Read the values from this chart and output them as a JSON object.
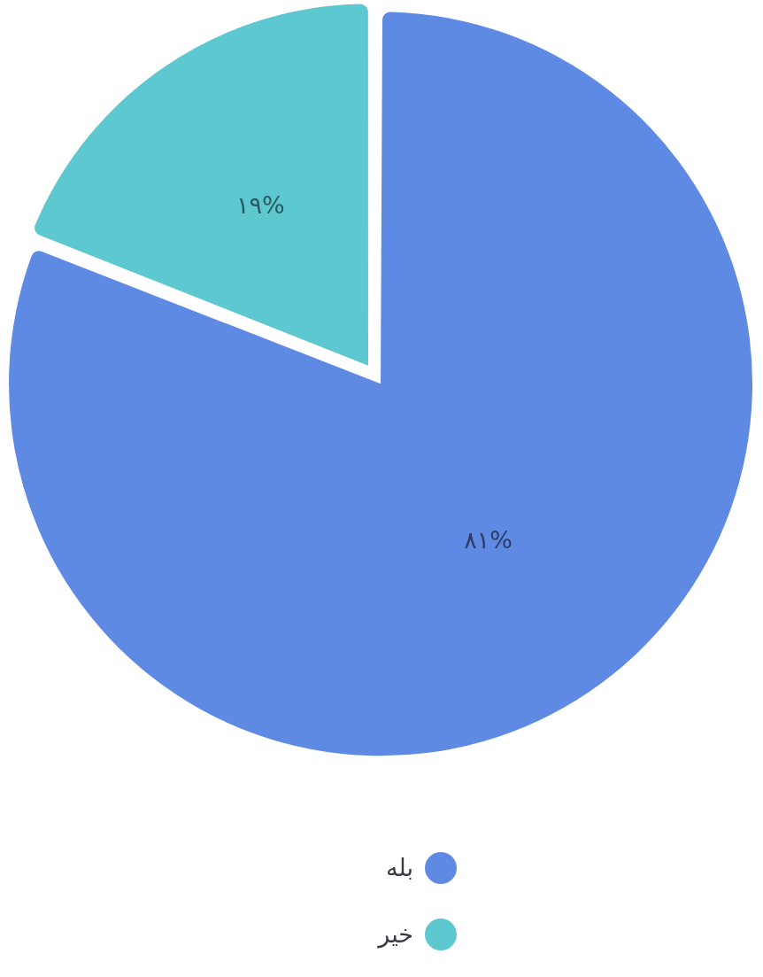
{
  "chart_data": {
    "type": "pie",
    "categories": [
      "بله",
      "خیر"
    ],
    "values": [
      81,
      19
    ],
    "colors": [
      "#5e8ae4",
      "#5ec8d0"
    ],
    "value_labels": [
      "۸۱%",
      "۱۹%"
    ],
    "legend": "bottom"
  }
}
